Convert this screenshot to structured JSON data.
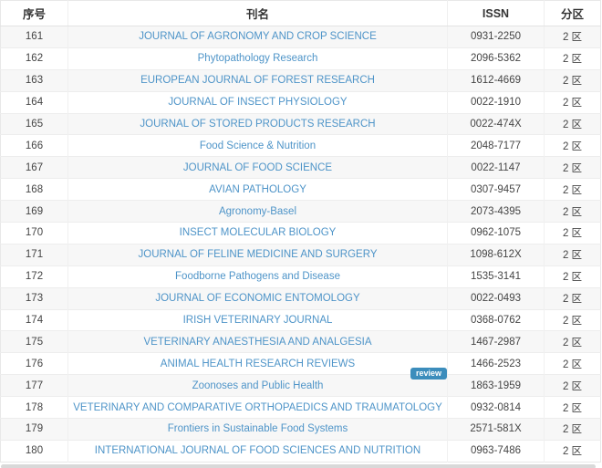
{
  "colors": {
    "link_blue": "#4e94c8",
    "badge_blue": "#3c8dbc",
    "stripe_gray": "#f7f7f7",
    "text_dark": "#333333"
  },
  "table": {
    "columns": {
      "index": "序号",
      "name": "刊名",
      "issn": "ISSN",
      "zone": "分区"
    },
    "review_badge": {
      "label": "review",
      "row": "176",
      "color": "#3c8dbc"
    },
    "rows": [
      {
        "index": "161",
        "name": "JOURNAL OF AGRONOMY AND CROP SCIENCE",
        "issn": "0931-2250",
        "zone": "2 区"
      },
      {
        "index": "162",
        "name": "Phytopathology Research",
        "issn": "2096-5362",
        "zone": "2 区"
      },
      {
        "index": "163",
        "name": "EUROPEAN JOURNAL OF FOREST RESEARCH",
        "issn": "1612-4669",
        "zone": "2 区"
      },
      {
        "index": "164",
        "name": "JOURNAL OF INSECT PHYSIOLOGY",
        "issn": "0022-1910",
        "zone": "2 区"
      },
      {
        "index": "165",
        "name": "JOURNAL OF STORED PRODUCTS RESEARCH",
        "issn": "0022-474X",
        "zone": "2 区"
      },
      {
        "index": "166",
        "name": "Food Science & Nutrition",
        "issn": "2048-7177",
        "zone": "2 区"
      },
      {
        "index": "167",
        "name": "JOURNAL OF FOOD SCIENCE",
        "issn": "0022-1147",
        "zone": "2 区"
      },
      {
        "index": "168",
        "name": "AVIAN PATHOLOGY",
        "issn": "0307-9457",
        "zone": "2 区"
      },
      {
        "index": "169",
        "name": "Agronomy-Basel",
        "issn": "2073-4395",
        "zone": "2 区"
      },
      {
        "index": "170",
        "name": "INSECT MOLECULAR BIOLOGY",
        "issn": "0962-1075",
        "zone": "2 区"
      },
      {
        "index": "171",
        "name": "JOURNAL OF FELINE MEDICINE AND SURGERY",
        "issn": "1098-612X",
        "zone": "2 区"
      },
      {
        "index": "172",
        "name": "Foodborne Pathogens and Disease",
        "issn": "1535-3141",
        "zone": "2 区"
      },
      {
        "index": "173",
        "name": "JOURNAL OF ECONOMIC ENTOMOLOGY",
        "issn": "0022-0493",
        "zone": "2 区"
      },
      {
        "index": "174",
        "name": "IRISH VETERINARY JOURNAL",
        "issn": "0368-0762",
        "zone": "2 区"
      },
      {
        "index": "175",
        "name": "VETERINARY ANAESTHESIA AND ANALGESIA",
        "issn": "1467-2987",
        "zone": "2 区"
      },
      {
        "index": "176",
        "name": "ANIMAL HEALTH RESEARCH REVIEWS",
        "issn": "1466-2523",
        "zone": "2 区"
      },
      {
        "index": "177",
        "name": "Zoonoses and Public Health",
        "issn": "1863-1959",
        "zone": "2 区"
      },
      {
        "index": "178",
        "name": "VETERINARY AND COMPARATIVE ORTHOPAEDICS AND TRAUMATOLOGY",
        "issn": "0932-0814",
        "zone": "2 区"
      },
      {
        "index": "179",
        "name": "Frontiers in Sustainable Food Systems",
        "issn": "2571-581X",
        "zone": "2 区"
      },
      {
        "index": "180",
        "name": "INTERNATIONAL JOURNAL OF FOOD SCIENCES AND NUTRITION",
        "issn": "0963-7486",
        "zone": "2 区"
      }
    ]
  }
}
